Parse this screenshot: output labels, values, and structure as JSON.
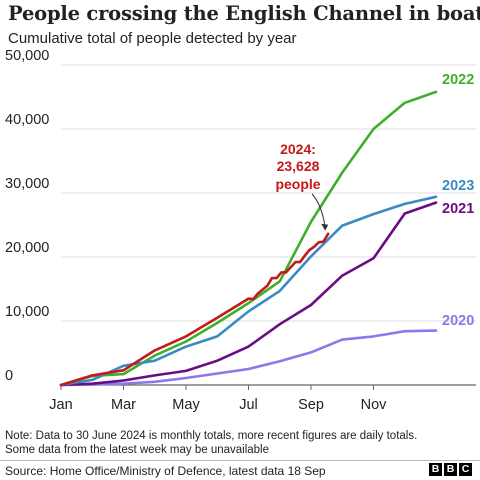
{
  "header": {
    "title": "People crossing the English Channel in boats",
    "subtitle": "Cumulative total of people detected by year"
  },
  "chart_data": {
    "type": "line",
    "title": "People crossing the English Channel in boats",
    "subtitle": "Cumulative total of people detected by year",
    "xlabel": "",
    "ylabel": "",
    "x_unit": "month of year",
    "x_range": [
      1,
      13
    ],
    "x_ticks": [
      {
        "label": "Jan",
        "x": 1
      },
      {
        "label": "Mar",
        "x": 3
      },
      {
        "label": "May",
        "x": 5
      },
      {
        "label": "Jul",
        "x": 7
      },
      {
        "label": "Sep",
        "x": 9
      },
      {
        "label": "Nov",
        "x": 11
      }
    ],
    "ylim": [
      0,
      50000
    ],
    "y_ticks": [
      0,
      10000,
      20000,
      30000,
      40000,
      50000
    ],
    "y_tick_labels": [
      "0",
      "10,000",
      "20,000",
      "30,000",
      "40,000",
      "50,000"
    ],
    "grid": "horizontal",
    "legend": "direct labels at line ends",
    "series": [
      {
        "name": "2020",
        "color": "#8b79e8",
        "x": [
          1,
          2,
          3,
          4,
          5,
          6,
          7,
          8,
          9,
          10,
          11,
          12,
          13
        ],
        "y": [
          0,
          100,
          200,
          500,
          1100,
          1800,
          2500,
          3700,
          5100,
          7100,
          7600,
          8400,
          8500
        ]
      },
      {
        "name": "2021",
        "color": "#6a0d83",
        "x": [
          1,
          2,
          3,
          4,
          5,
          6,
          7,
          8,
          9,
          10,
          11,
          12,
          13
        ],
        "y": [
          0,
          200,
          700,
          1500,
          2200,
          3800,
          6000,
          9500,
          12500,
          17100,
          19800,
          26800,
          28500
        ]
      },
      {
        "name": "2022",
        "color": "#3fae2a",
        "x": [
          1,
          2,
          3,
          4,
          5,
          6,
          7,
          8,
          9,
          10,
          11,
          12,
          13
        ],
        "y": [
          0,
          1400,
          1700,
          4600,
          6800,
          9700,
          12800,
          16200,
          25500,
          33200,
          40000,
          44100,
          45800
        ]
      },
      {
        "name": "2023",
        "color": "#3a8bc3",
        "x": [
          1,
          2,
          3,
          4,
          5,
          6,
          7,
          8,
          9,
          10,
          11,
          12,
          13
        ],
        "y": [
          0,
          800,
          3000,
          3800,
          6000,
          7600,
          11500,
          14700,
          20100,
          24900,
          26700,
          28300,
          29400
        ]
      },
      {
        "name": "2024",
        "color": "#c41a1a",
        "x": [
          1,
          2,
          3,
          4,
          5,
          6,
          7,
          7.15,
          7.3,
          7.45,
          7.6,
          7.75,
          7.9,
          8.05,
          8.2,
          8.35,
          8.5,
          8.65,
          8.8,
          8.95,
          9.1,
          9.25,
          9.4,
          9.55
        ],
        "y": [
          0,
          1500,
          2300,
          5400,
          7600,
          10500,
          13500,
          13400,
          14300,
          14900,
          15500,
          16700,
          16700,
          17600,
          17600,
          18400,
          19200,
          19200,
          20200,
          21100,
          21600,
          22300,
          22400,
          23628
        ]
      }
    ],
    "annotations": [
      {
        "text_lines": [
          "2024:",
          "23,628",
          "people"
        ],
        "series": "2024",
        "color": "#c41a1a"
      }
    ]
  },
  "footer": {
    "note_line1": "Note: Data to 30 June 2024 is monthly totals, more recent figures are daily totals.",
    "note_line2": "Some data from the latest week may be unavailable",
    "source": "Source: Home Office/Ministry of Defence, latest data 18 Sep",
    "logo_letters": [
      "B",
      "B",
      "C"
    ]
  }
}
